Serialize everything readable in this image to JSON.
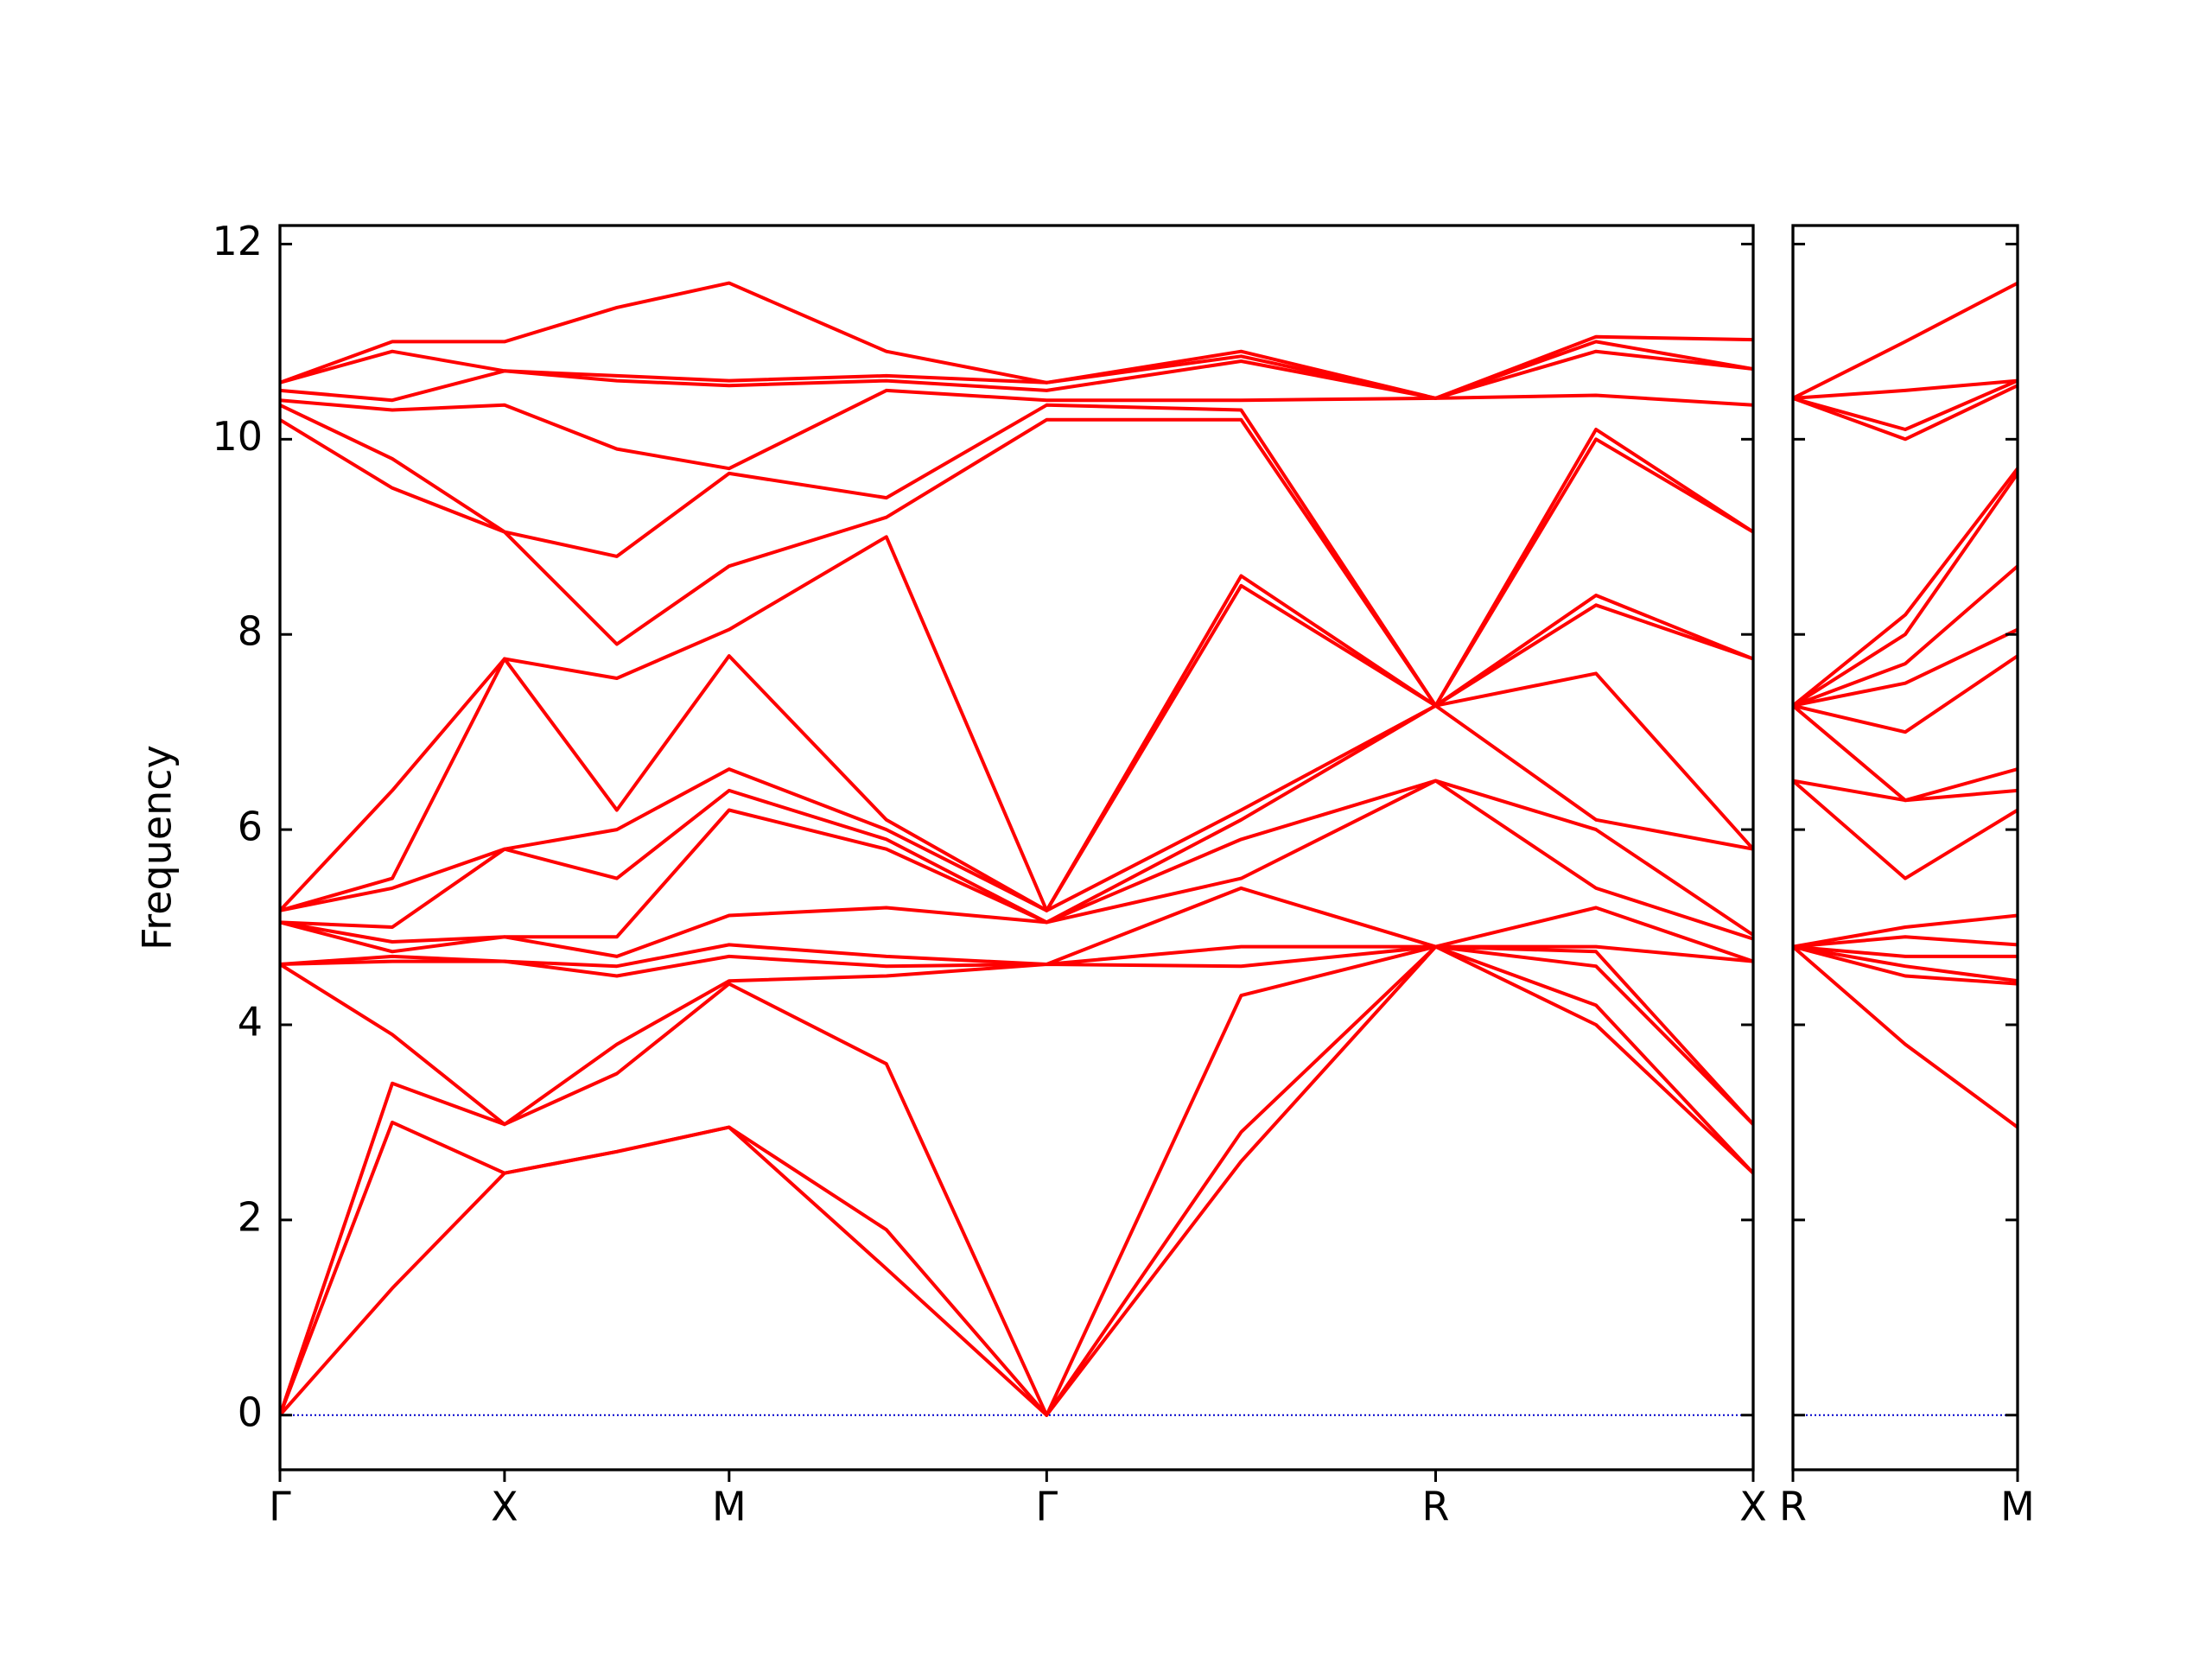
{
  "chart_data": [
    {
      "type": "line",
      "ylabel": "Frequency",
      "color": "#ff0000",
      "zero_line_color": "#0000cc",
      "x": [
        0,
        0.25,
        0.5,
        0.75,
        1.0,
        1.35,
        1.707,
        2.14,
        2.573,
        2.93,
        3.28
      ],
      "xlim": [
        0,
        3.28
      ],
      "xticks": [
        {
          "value": 0,
          "label": "Γ"
        },
        {
          "value": 0.5,
          "label": "X"
        },
        {
          "value": 1.0,
          "label": "M"
        },
        {
          "value": 1.707,
          "label": "Γ"
        },
        {
          "value": 2.573,
          "label": "R"
        },
        {
          "value": 3.28,
          "label": "X"
        }
      ],
      "ylim": [
        -0.56,
        12.19
      ],
      "yticks": [
        0,
        2,
        4,
        6,
        8,
        10,
        12
      ],
      "series": [
        {
          "values": [
            0,
            1.3,
            2.48,
            2.7,
            2.95,
            1.5,
            0,
            2.6,
            4.8,
            4.0,
            2.48
          ]
        },
        {
          "values": [
            0,
            3.0,
            2.48,
            2.7,
            2.95,
            1.9,
            0,
            2.9,
            4.8,
            4.2,
            2.48
          ]
        },
        {
          "values": [
            0,
            3.4,
            2.98,
            3.5,
            4.42,
            3.6,
            0,
            4.3,
            4.8,
            4.6,
            2.98
          ]
        },
        {
          "values": [
            4.62,
            3.9,
            2.98,
            3.8,
            4.45,
            4.5,
            4.62,
            4.6,
            4.8,
            4.75,
            2.98
          ]
        },
        {
          "values": [
            4.62,
            4.65,
            4.65,
            4.5,
            4.7,
            4.6,
            4.62,
            4.8,
            4.8,
            4.8,
            4.65
          ]
        },
        {
          "values": [
            4.62,
            4.7,
            4.65,
            4.6,
            4.82,
            4.7,
            4.62,
            5.4,
            4.8,
            5.2,
            4.65
          ]
        },
        {
          "values": [
            5.05,
            4.75,
            4.9,
            4.7,
            5.12,
            5.2,
            5.05,
            5.5,
            6.5,
            5.4,
            4.88
          ]
        },
        {
          "values": [
            5.05,
            4.85,
            4.9,
            4.9,
            6.2,
            5.8,
            5.05,
            5.9,
            6.5,
            6.0,
            4.92
          ]
        },
        {
          "values": [
            5.05,
            5.0,
            5.8,
            5.5,
            6.4,
            5.9,
            5.05,
            6.1,
            7.27,
            6.1,
            5.8
          ]
        },
        {
          "values": [
            5.17,
            5.4,
            5.8,
            6.0,
            6.62,
            6.0,
            5.17,
            6.2,
            7.27,
            7.6,
            5.8
          ]
        },
        {
          "values": [
            5.17,
            5.5,
            7.75,
            6.2,
            7.78,
            6.1,
            5.17,
            8.5,
            7.27,
            8.3,
            7.75
          ]
        },
        {
          "values": [
            5.17,
            6.4,
            7.75,
            7.55,
            8.05,
            9.0,
            5.17,
            8.6,
            7.27,
            8.4,
            7.75
          ]
        },
        {
          "values": [
            10.2,
            9.5,
            9.05,
            7.9,
            8.7,
            9.2,
            10.2,
            10.2,
            7.27,
            10.0,
            9.05
          ]
        },
        {
          "values": [
            10.35,
            9.8,
            9.05,
            8.8,
            9.65,
            9.4,
            10.35,
            10.3,
            7.27,
            10.1,
            9.05
          ]
        },
        {
          "values": [
            10.4,
            10.3,
            10.35,
            9.9,
            9.7,
            10.5,
            10.4,
            10.4,
            10.42,
            10.45,
            10.35
          ]
        },
        {
          "values": [
            10.5,
            10.4,
            10.7,
            10.6,
            10.55,
            10.6,
            10.5,
            10.8,
            10.42,
            10.9,
            10.72
          ]
        },
        {
          "values": [
            10.58,
            10.9,
            10.7,
            10.65,
            10.6,
            10.65,
            10.58,
            10.85,
            10.42,
            11.0,
            10.72
          ]
        },
        {
          "values": [
            10.58,
            11.0,
            11.0,
            11.35,
            11.6,
            10.9,
            10.58,
            10.9,
            10.42,
            11.05,
            11.02
          ]
        }
      ]
    },
    {
      "type": "line",
      "color": "#ff0000",
      "zero_line_color": "#0000cc",
      "x": [
        0,
        0.25,
        0.5
      ],
      "xlim": [
        0,
        0.5
      ],
      "xticks": [
        {
          "value": 0,
          "label": "R"
        },
        {
          "value": 0.5,
          "label": "M"
        }
      ],
      "ylim": [
        -0.56,
        12.19
      ],
      "yticks": [
        0,
        2,
        4,
        6,
        8,
        10,
        12
      ],
      "series": [
        {
          "values": [
            4.8,
            3.8,
            2.95
          ]
        },
        {
          "values": [
            4.8,
            4.5,
            4.42
          ]
        },
        {
          "values": [
            4.8,
            4.6,
            4.45
          ]
        },
        {
          "values": [
            4.8,
            4.7,
            4.7
          ]
        },
        {
          "values": [
            4.8,
            4.9,
            4.82
          ]
        },
        {
          "values": [
            4.8,
            5.0,
            5.12
          ]
        },
        {
          "values": [
            6.5,
            5.5,
            6.2
          ]
        },
        {
          "values": [
            6.5,
            6.3,
            6.4
          ]
        },
        {
          "values": [
            7.27,
            6.3,
            6.62
          ]
        },
        {
          "values": [
            7.27,
            7.0,
            7.78
          ]
        },
        {
          "values": [
            7.27,
            7.5,
            8.05
          ]
        },
        {
          "values": [
            7.27,
            7.7,
            8.7
          ]
        },
        {
          "values": [
            7.27,
            8.0,
            9.65
          ]
        },
        {
          "values": [
            7.27,
            8.2,
            9.7
          ]
        },
        {
          "values": [
            10.42,
            10.0,
            10.55
          ]
        },
        {
          "values": [
            10.42,
            10.1,
            10.6
          ]
        },
        {
          "values": [
            10.42,
            10.5,
            10.6
          ]
        },
        {
          "values": [
            10.42,
            11.0,
            11.6
          ]
        }
      ]
    }
  ]
}
